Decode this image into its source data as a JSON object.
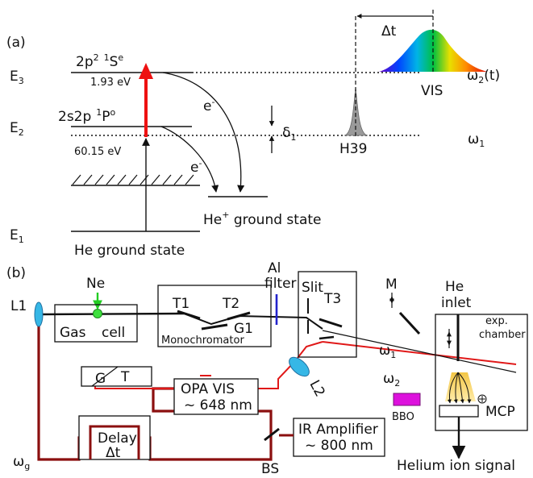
{
  "panel_a": {
    "label": "(a)",
    "levels": {
      "E3": "E",
      "E3_sub": "3",
      "E2": "E",
      "E2_sub": "2",
      "E1": "E",
      "E1_sub": "1"
    },
    "state_2p2": "2p",
    "state_2p2_sup1": "2",
    "state_2p2_sup2": "1",
    "state_2p2_term": "S",
    "state_2p2_sup3": "e",
    "state_2s2p": "2s2p",
    "state_2s2p_sup1": "1",
    "state_2s2p_term": "P",
    "state_2s2p_sup2": "o",
    "energy_193": "1.93 eV",
    "energy_6015": "60.15 eV",
    "electron1": "e",
    "electron1_sup": "-",
    "electron2": "e",
    "electron2_sup": "-",
    "delta1": "δ",
    "delta1_sub": "1",
    "he_plus": "He",
    "he_plus_sup": "+",
    "he_plus_rest": " ground state",
    "he_ground": "He ground state",
    "h39": "H39",
    "vis": "VIS",
    "delta_t": "Δt",
    "omega1": "ω",
    "omega1_sub": "1",
    "omega2": "ω",
    "omega2_sub": "2",
    "omega2_rest": "(t)"
  },
  "panel_b": {
    "label": "(b)",
    "ne": "Ne",
    "l1": "L1",
    "al_filter_1": "Al",
    "al_filter_2": "filter",
    "gas": "Gas",
    "cell": "cell",
    "t1": "T1",
    "t2": "T2",
    "g1": "G1",
    "monochromator": "Monochromator",
    "slit": "Slit",
    "t3": "T3",
    "m": "M",
    "he": "He",
    "inlet": "inlet",
    "exp": "exp.",
    "chamber": "chamber",
    "omega1": "ω",
    "omega1_sub": "1",
    "omega2": "ω",
    "omega2_sub": "2",
    "l2": "L2",
    "bbo": "BBO",
    "g": "G",
    "t": "T",
    "opa_1": "OPA VIS",
    "opa_2": "~ 648 nm",
    "delay_1": "Delay",
    "delay_2": "Δt",
    "ir_1": "IR Amplifier",
    "ir_2": "~ 800 nm",
    "bs": "BS",
    "mcp": "MCP",
    "omega_g": "ω",
    "omega_g_sub": "g",
    "signal": "Helium ion signal"
  }
}
